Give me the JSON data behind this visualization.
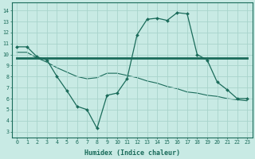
{
  "xlabel": "Humidex (Indice chaleur)",
  "ylabel": "",
  "background_color": "#c8eae4",
  "grid_color": "#a8d4cc",
  "line_color": "#1a6b5a",
  "xlim": [
    -0.5,
    23.5
  ],
  "ylim": [
    2.5,
    14.7
  ],
  "xticks": [
    0,
    1,
    2,
    3,
    4,
    5,
    6,
    7,
    8,
    9,
    10,
    11,
    12,
    13,
    14,
    15,
    16,
    17,
    18,
    19,
    20,
    21,
    22,
    23
  ],
  "yticks": [
    3,
    4,
    5,
    6,
    7,
    8,
    9,
    10,
    11,
    12,
    13,
    14
  ],
  "line1_x": [
    0,
    1,
    2,
    3,
    4,
    5,
    6,
    7,
    8,
    9,
    10,
    11,
    12,
    13,
    14,
    15,
    16,
    17,
    18,
    19,
    20,
    21,
    22,
    23
  ],
  "line1_y": [
    10.7,
    10.7,
    9.8,
    9.5,
    8.0,
    6.7,
    5.3,
    5.0,
    3.3,
    6.3,
    6.5,
    7.8,
    11.8,
    13.2,
    13.3,
    13.1,
    13.8,
    13.7,
    10.0,
    9.5,
    7.5,
    6.8,
    6.0,
    6.0
  ],
  "line2_x": [
    0,
    23
  ],
  "line2_y": [
    9.7,
    9.7
  ],
  "line3_x": [
    0,
    1,
    2,
    3,
    4,
    5,
    6,
    7,
    8,
    9,
    10,
    11,
    12,
    13,
    14,
    15,
    16,
    17,
    18,
    19,
    20,
    21,
    22,
    23
  ],
  "line3_y": [
    10.2,
    10.2,
    9.7,
    9.3,
    8.8,
    8.4,
    8.0,
    7.8,
    7.9,
    8.3,
    8.3,
    8.1,
    7.9,
    7.6,
    7.4,
    7.1,
    6.9,
    6.6,
    6.5,
    6.3,
    6.2,
    6.0,
    5.9,
    5.8
  ]
}
